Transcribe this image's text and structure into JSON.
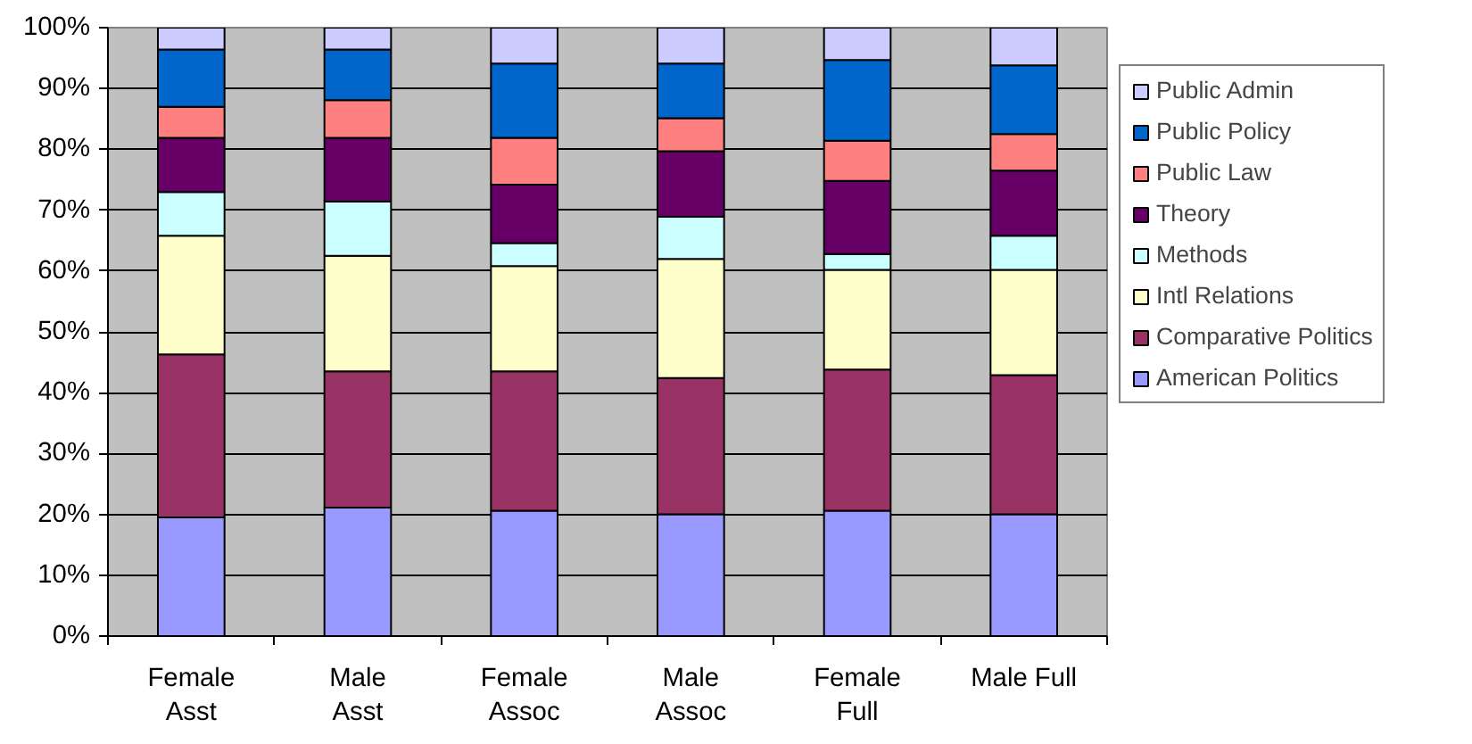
{
  "chart_data": {
    "type": "bar",
    "stacked": true,
    "categories": [
      "Female\nAsst",
      "Male\nAsst",
      "Female\nAssoc",
      "Male\nAssoc",
      "Female\nFull",
      "Male Full"
    ],
    "series": [
      {
        "name": "American Politics",
        "color": "#9999ff",
        "values": [
          19.5,
          21.1,
          20.6,
          20.0,
          20.6,
          20.0
        ]
      },
      {
        "name": "Comparative Politics",
        "color": "#993366",
        "values": [
          26.8,
          22.4,
          22.9,
          22.4,
          23.2,
          22.9
        ]
      },
      {
        "name": "Intl Relations",
        "color": "#ffffcc",
        "values": [
          19.5,
          19.0,
          17.3,
          19.6,
          16.4,
          17.3
        ]
      },
      {
        "name": "Methods",
        "color": "#ccffff",
        "values": [
          7.2,
          8.9,
          3.8,
          6.9,
          2.6,
          5.6
        ]
      },
      {
        "name": "Theory",
        "color": "#660066",
        "values": [
          8.9,
          10.5,
          9.6,
          10.8,
          12.0,
          10.7
        ]
      },
      {
        "name": "Public Law",
        "color": "#ff8080",
        "values": [
          5.1,
          6.2,
          7.7,
          5.4,
          6.6,
          6.0
        ]
      },
      {
        "name": "Public Policy",
        "color": "#0066cc",
        "values": [
          9.4,
          8.3,
          12.2,
          9.0,
          13.3,
          11.3
        ]
      },
      {
        "name": "Public Admin",
        "color": "#ccccff",
        "values": [
          3.6,
          3.6,
          5.9,
          5.9,
          5.3,
          6.2
        ]
      }
    ],
    "ylim": [
      0,
      100
    ],
    "yticks": [
      {
        "value": 0,
        "label": "0%"
      },
      {
        "value": 10,
        "label": "10%"
      },
      {
        "value": 20,
        "label": "20%"
      },
      {
        "value": 30,
        "label": "30%"
      },
      {
        "value": 40,
        "label": "40%"
      },
      {
        "value": 50,
        "label": "50%"
      },
      {
        "value": 60,
        "label": "60%"
      },
      {
        "value": 70,
        "label": "70%"
      },
      {
        "value": 80,
        "label": "80%"
      },
      {
        "value": 90,
        "label": "90%"
      },
      {
        "value": 100,
        "label": "100%"
      }
    ],
    "grid": "y",
    "legend": "right"
  }
}
